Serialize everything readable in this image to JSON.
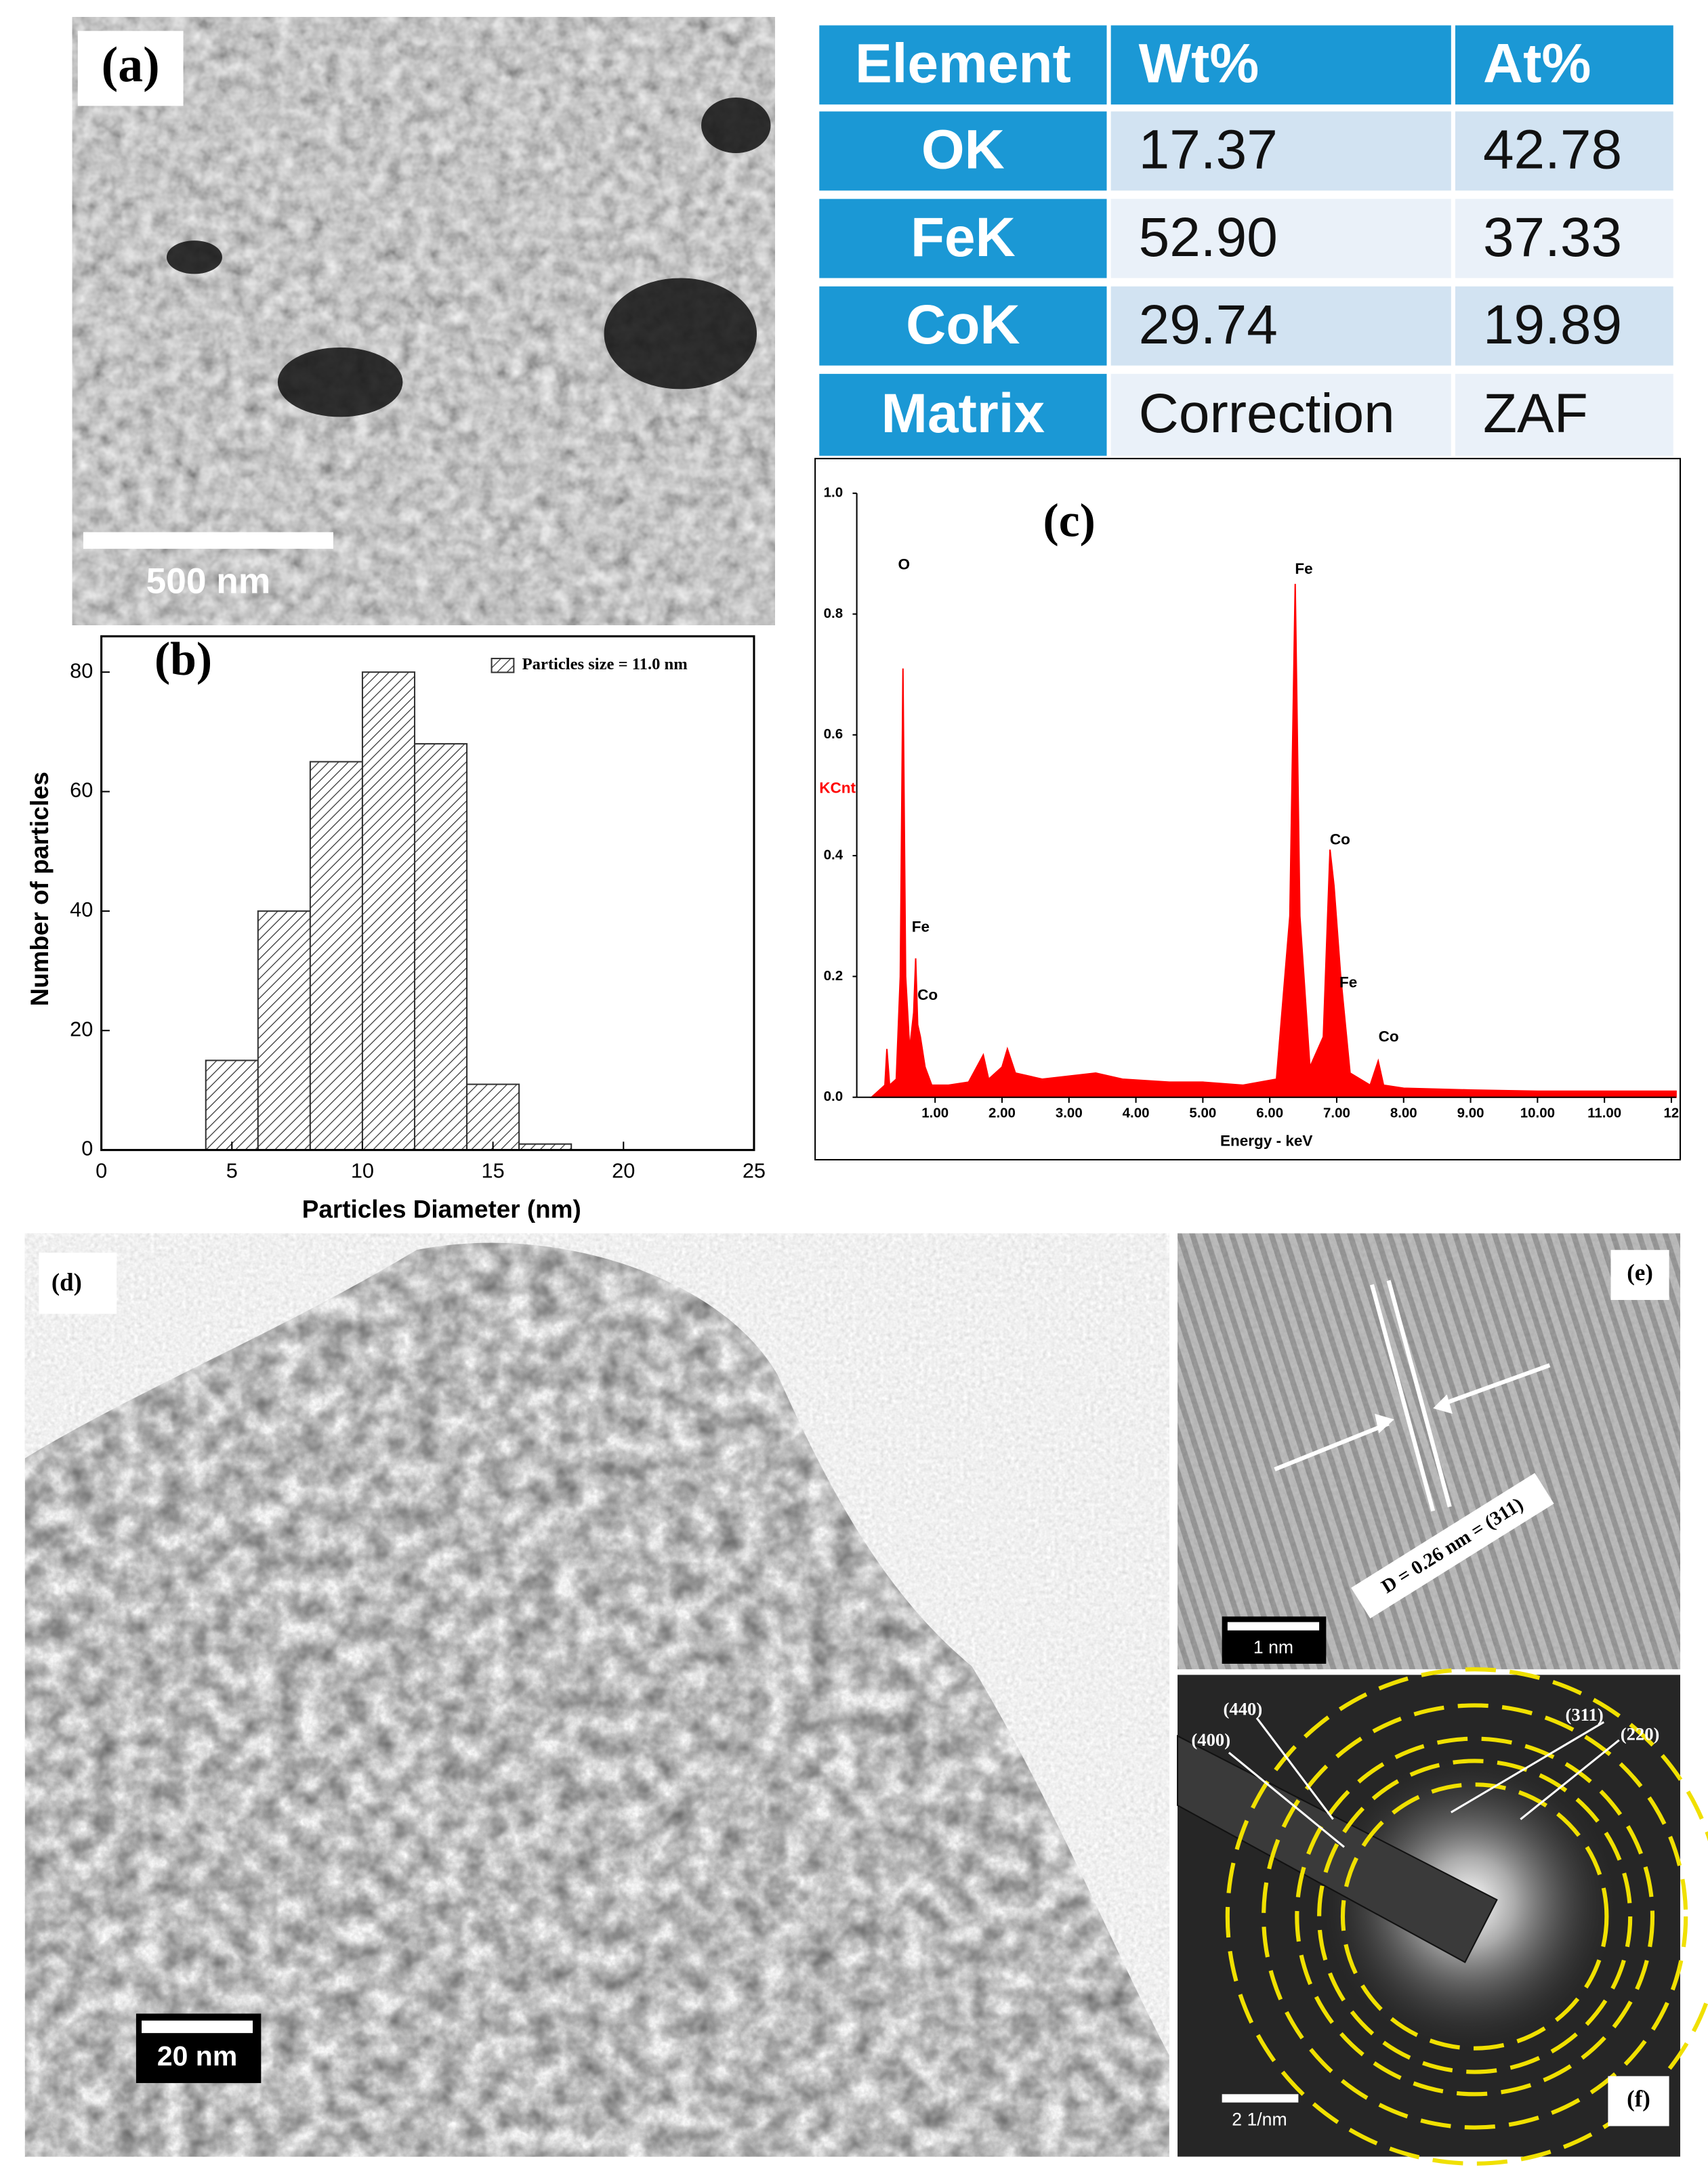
{
  "panels": [
    {
      "label": "(a)",
      "scale_bar": "500 nm"
    },
    {
      "label": "(d)",
      "scale_bar": "20 nm"
    },
    {
      "label": "(e)",
      "scale_bar": "1 nm",
      "annotation": "D = 0.26 nm = (311)"
    },
    {
      "label": "(f)",
      "scale_bar": "2 1/nm",
      "rings": [
        "(440)",
        "(400)",
        "(311)",
        "(220)"
      ]
    }
  ],
  "table": {
    "header": [
      "Element",
      "Wt%",
      "At%"
    ],
    "rows": [
      [
        "OK",
        "17.37",
        "42.78"
      ],
      [
        "FeK",
        "52.90",
        "37.33"
      ],
      [
        "CoK",
        "29.74",
        "19.89"
      ],
      [
        "Matrix",
        "Correction",
        "ZAF"
      ]
    ]
  },
  "chart_data": [
    {
      "type": "histogram",
      "panel_label": "(b)",
      "xlabel": "Particles Diameter (nm)",
      "ylabel": "Number of particles",
      "bins": [
        4,
        6,
        8,
        10,
        12,
        14,
        16,
        18
      ],
      "series": [
        {
          "name": "Particles size = 11.0 nm",
          "color": "#333333",
          "values": [
            15,
            40,
            65,
            80,
            68,
            11,
            1
          ]
        }
      ],
      "xlim": [
        0,
        25
      ],
      "ylim": [
        0,
        86
      ],
      "xticks": [
        0,
        5,
        10,
        15,
        20,
        25
      ],
      "yticks": [
        0,
        20,
        40,
        60,
        80
      ]
    },
    {
      "type": "area",
      "panel_label": "(c)",
      "xlabel": "Energy - keV",
      "ylabel": "KCnt",
      "x": [
        0.05,
        0.25,
        0.28,
        0.32,
        0.42,
        0.48,
        0.52,
        0.56,
        0.62,
        0.68,
        0.71,
        0.74,
        0.78,
        0.85,
        0.95,
        1.2,
        1.5,
        1.72,
        1.8,
        2.0,
        2.08,
        2.2,
        2.6,
        3.0,
        3.4,
        3.8,
        4.5,
        5.0,
        5.6,
        6.1,
        6.3,
        6.38,
        6.45,
        6.6,
        6.8,
        6.9,
        6.96,
        7.06,
        7.2,
        7.5,
        7.62,
        7.7,
        8.0,
        9.0,
        10.0,
        11.0,
        12.07
      ],
      "series": [
        {
          "color": "#ff0000",
          "values": [
            0.0,
            0.02,
            0.08,
            0.02,
            0.03,
            0.2,
            0.71,
            0.2,
            0.08,
            0.14,
            0.23,
            0.12,
            0.1,
            0.05,
            0.02,
            0.02,
            0.025,
            0.07,
            0.03,
            0.05,
            0.08,
            0.04,
            0.03,
            0.035,
            0.04,
            0.03,
            0.025,
            0.025,
            0.02,
            0.03,
            0.3,
            0.85,
            0.3,
            0.05,
            0.1,
            0.41,
            0.35,
            0.2,
            0.04,
            0.02,
            0.06,
            0.02,
            0.015,
            0.012,
            0.01,
            0.01,
            0.01
          ]
        }
      ],
      "peak_labels": [
        "O",
        "Fe",
        "Co",
        "Fe",
        "Co",
        "Fe",
        "Co"
      ],
      "xlim": [
        -0.17,
        12.07
      ],
      "ylim": [
        0,
        1
      ],
      "xticks": [
        {
          "value": 1,
          "label": "1.00"
        },
        {
          "value": 2,
          "label": "2.00"
        },
        {
          "value": 3,
          "label": "3.00"
        },
        {
          "value": 4,
          "label": "4.00"
        },
        {
          "value": 5,
          "label": "5.00"
        },
        {
          "value": 6,
          "label": "6.00"
        },
        {
          "value": 7,
          "label": "7.00"
        },
        {
          "value": 8,
          "label": "8.00"
        },
        {
          "value": 9,
          "label": "9.00"
        },
        {
          "value": 10,
          "label": "10.00"
        },
        {
          "value": 11,
          "label": "11.00"
        },
        {
          "value": 12,
          "label": "12"
        }
      ],
      "yticks": [
        {
          "value": 0,
          "label": "0.0"
        },
        {
          "value": 0.2,
          "label": "0.2"
        },
        {
          "value": 0.4,
          "label": "0.4"
        },
        {
          "value": 0.6,
          "label": "0.6"
        },
        {
          "value": 0.8,
          "label": "0.8"
        },
        {
          "value": 1,
          "label": "1.0"
        }
      ]
    }
  ]
}
